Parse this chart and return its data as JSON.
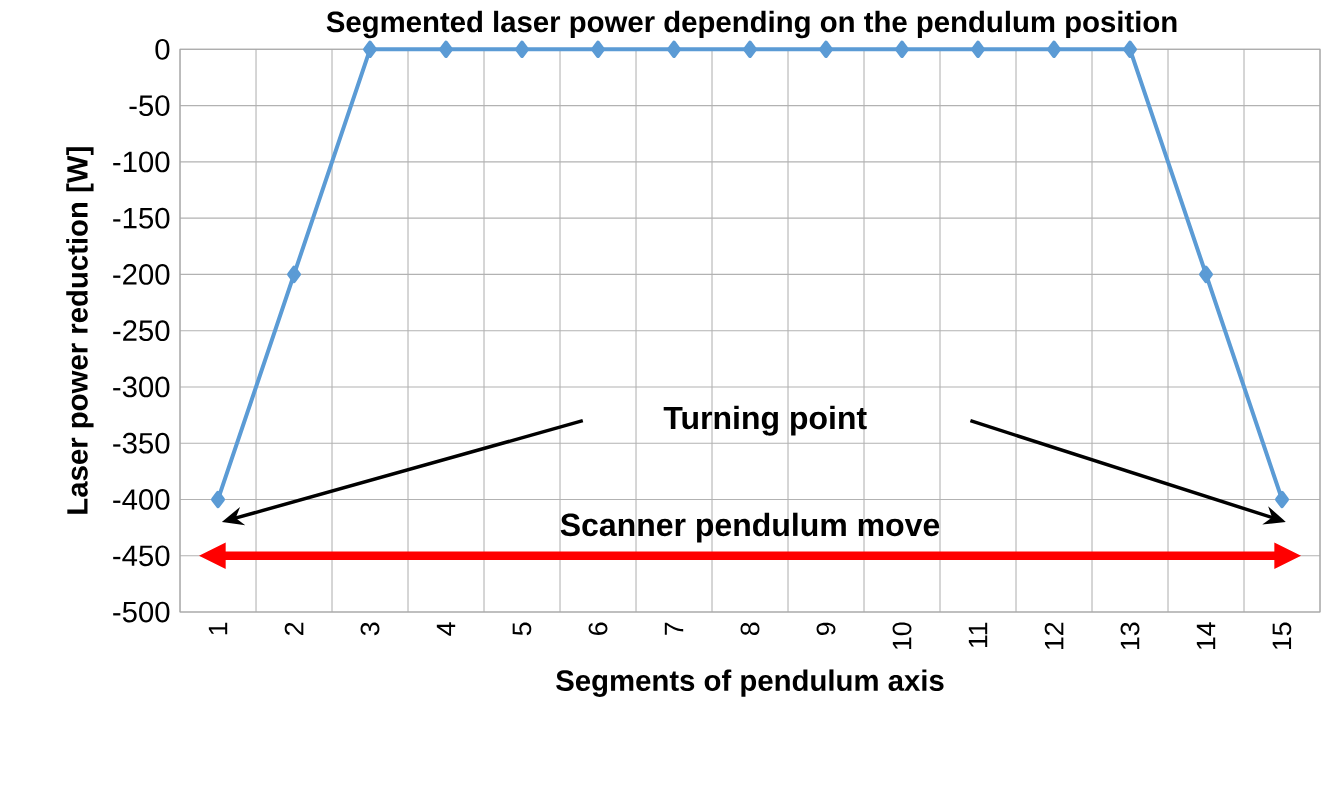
{
  "chart_data": {
    "type": "line",
    "title": "Segmented laser power depending on the pendulum position",
    "xlabel": "Segments of pendulum axis",
    "ylabel": "Laser power  reduction [W]",
    "categories": [
      "1",
      "2",
      "3",
      "4",
      "5",
      "6",
      "7",
      "8",
      "9",
      "10",
      "11",
      "12",
      "13",
      "14",
      "15"
    ],
    "series": [
      {
        "color": "#5b9bd5",
        "values": [
          -400,
          -200,
          0,
          0,
          0,
          0,
          0,
          0,
          0,
          0,
          0,
          0,
          0,
          -200,
          -400
        ]
      }
    ],
    "ylim": [
      -500,
      0
    ],
    "yticks": [
      0,
      -50,
      -100,
      -150,
      -200,
      -250,
      -300,
      -350,
      -400,
      -450,
      -500
    ],
    "grid": true,
    "marker": "diamond",
    "line_style": "solid",
    "annotations": [
      "Turning point",
      "Scanner pendulum move"
    ]
  }
}
